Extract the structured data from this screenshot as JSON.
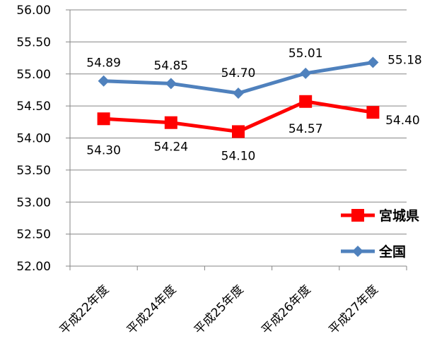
{
  "chart_data": {
    "type": "line",
    "categories": [
      "平成22年度",
      "平成24年度",
      "平成25年度",
      "平成26年度",
      "平成27年度"
    ],
    "ylim": [
      52.0,
      56.0
    ],
    "yticks": [
      "52.00",
      "52.50",
      "53.00",
      "53.50",
      "54.00",
      "54.50",
      "55.00",
      "55.50",
      "56.00"
    ],
    "grid": true,
    "legend": "right",
    "series": [
      {
        "name": "宮城県",
        "color": "#ff0000",
        "marker": "square",
        "values": [
          54.3,
          54.24,
          54.1,
          54.57,
          54.4
        ],
        "labels": [
          "54.30",
          "54.24",
          "54.10",
          "54.57",
          "54.40"
        ]
      },
      {
        "name": "全国",
        "color": "#4f81bd",
        "marker": "diamond",
        "values": [
          54.89,
          54.85,
          54.7,
          55.01,
          55.18
        ],
        "labels": [
          "54.89",
          "54.85",
          "54.70",
          "55.01",
          "55.18"
        ]
      }
    ]
  }
}
